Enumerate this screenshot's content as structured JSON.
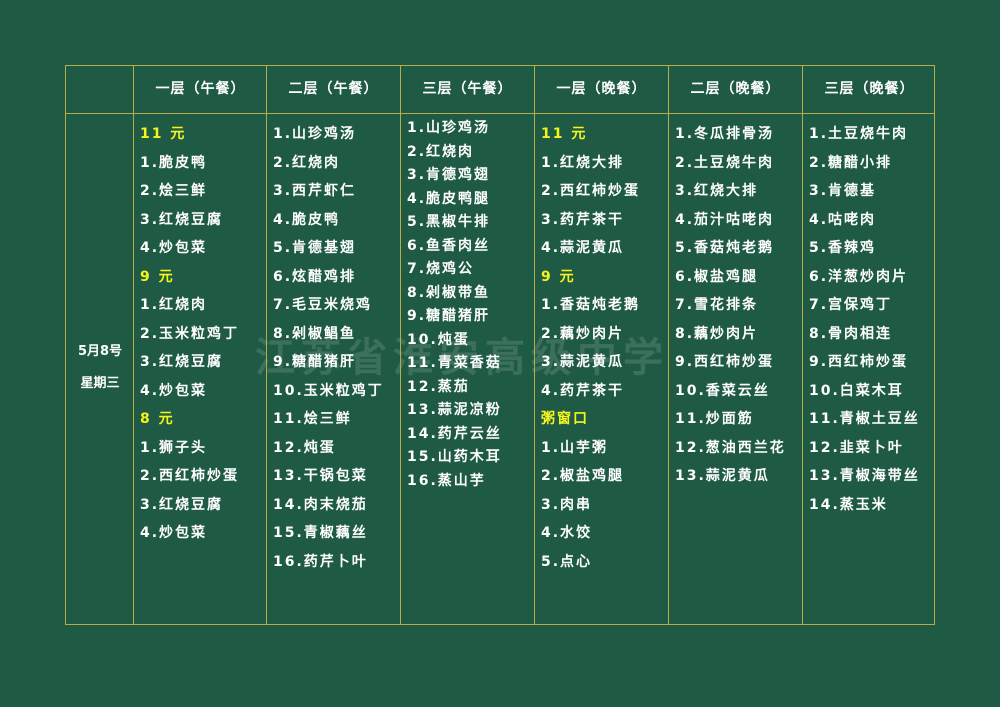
{
  "colors": {
    "background": "#1f5b44",
    "grid": "#b9ad4a",
    "text": "#ffffff",
    "price": "#f5f51e"
  },
  "watermark": "江苏省淮安高级中学",
  "date": "5月8号",
  "weekday": "星期三",
  "headers": [
    "一层（午餐）",
    "二层（午餐）",
    "三层（午餐）",
    "一层（晚餐）",
    "二层（晚餐）",
    "三层（晚餐）"
  ],
  "columns": [
    [
      {
        "t": "11 元",
        "p": true
      },
      {
        "t": "1.脆皮鸭"
      },
      {
        "t": "2.烩三鲜"
      },
      {
        "t": "3.红烧豆腐"
      },
      {
        "t": "4.炒包菜"
      },
      {
        "t": "9 元",
        "p": true
      },
      {
        "t": "1.红烧肉"
      },
      {
        "t": "2.玉米粒鸡丁"
      },
      {
        "t": "3.红烧豆腐"
      },
      {
        "t": "4.炒包菜"
      },
      {
        "t": "8 元",
        "p": true
      },
      {
        "t": "1.狮子头"
      },
      {
        "t": "2.西红柿炒蛋"
      },
      {
        "t": "3.红烧豆腐"
      },
      {
        "t": "4.炒包菜"
      }
    ],
    [
      {
        "t": "1.山珍鸡汤"
      },
      {
        "t": "2.红烧肉"
      },
      {
        "t": "3.西芹虾仁"
      },
      {
        "t": "4.脆皮鸭"
      },
      {
        "t": "5.肯德基翅"
      },
      {
        "t": "6.炫醋鸡排"
      },
      {
        "t": "7.毛豆米烧鸡"
      },
      {
        "t": "8.剁椒鲳鱼"
      },
      {
        "t": "9.糖醋猪肝"
      },
      {
        "t": "10.玉米粒鸡丁"
      },
      {
        "t": "11.烩三鲜"
      },
      {
        "t": "12.炖蛋"
      },
      {
        "t": "13.干锅包菜"
      },
      {
        "t": "14.肉末烧茄"
      },
      {
        "t": "15.青椒藕丝"
      },
      {
        "t": "16.药芹卜叶"
      }
    ],
    [
      {
        "t": "1.山珍鸡汤"
      },
      {
        "t": "2.红烧肉"
      },
      {
        "t": "3.肯德鸡翅"
      },
      {
        "t": "4.脆皮鸭腿"
      },
      {
        "t": "5.黑椒牛排"
      },
      {
        "t": "6.鱼香肉丝"
      },
      {
        "t": "7.烧鸡公"
      },
      {
        "t": "8.剁椒带鱼"
      },
      {
        "t": "9.糖醋猪肝"
      },
      {
        "t": "10.炖蛋"
      },
      {
        "t": "11.青菜香菇"
      },
      {
        "t": "12.蒸茄"
      },
      {
        "t": "13.蒜泥凉粉"
      },
      {
        "t": "14.药芹云丝"
      },
      {
        "t": "15.山药木耳"
      },
      {
        "t": "16.蒸山芋"
      }
    ],
    [
      {
        "t": "11 元",
        "p": true
      },
      {
        "t": "1.红烧大排"
      },
      {
        "t": "2.西红柿炒蛋"
      },
      {
        "t": "3.药芹茶干"
      },
      {
        "t": "4.蒜泥黄瓜"
      },
      {
        "t": "9 元",
        "p": true
      },
      {
        "t": "1.香菇炖老鹅"
      },
      {
        "t": "2.藕炒肉片"
      },
      {
        "t": "3.蒜泥黄瓜"
      },
      {
        "t": "4.药芹茶干"
      },
      {
        "t": "粥窗口",
        "p": true
      },
      {
        "t": "1.山芋粥"
      },
      {
        "t": "2.椒盐鸡腿"
      },
      {
        "t": "3.肉串"
      },
      {
        "t": "4.水饺"
      },
      {
        "t": "5.点心"
      }
    ],
    [
      {
        "t": "1.冬瓜排骨汤"
      },
      {
        "t": "2.土豆烧牛肉"
      },
      {
        "t": "3.红烧大排"
      },
      {
        "t": "4.茄汁咕咾肉"
      },
      {
        "t": "5.香菇炖老鹅"
      },
      {
        "t": "6.椒盐鸡腿"
      },
      {
        "t": "7.雪花排条"
      },
      {
        "t": "8.藕炒肉片"
      },
      {
        "t": "9.西红柿炒蛋"
      },
      {
        "t": "10.香菜云丝"
      },
      {
        "t": "11.炒面筋"
      },
      {
        "t": "12.葱油西兰花"
      },
      {
        "t": "13.蒜泥黄瓜"
      }
    ],
    [
      {
        "t": "1.土豆烧牛肉"
      },
      {
        "t": "2.糖醋小排"
      },
      {
        "t": "3.肯德基"
      },
      {
        "t": "4.咕咾肉"
      },
      {
        "t": "5.香辣鸡"
      },
      {
        "t": "6.洋葱炒肉片"
      },
      {
        "t": "7.宫保鸡丁"
      },
      {
        "t": "8.骨肉相连"
      },
      {
        "t": "9.西红柿炒蛋"
      },
      {
        "t": "10.白菜木耳"
      },
      {
        "t": "11.青椒土豆丝"
      },
      {
        "t": "12.韭菜卜叶"
      },
      {
        "t": "13.青椒海带丝"
      },
      {
        "t": "14.蒸玉米"
      }
    ]
  ]
}
